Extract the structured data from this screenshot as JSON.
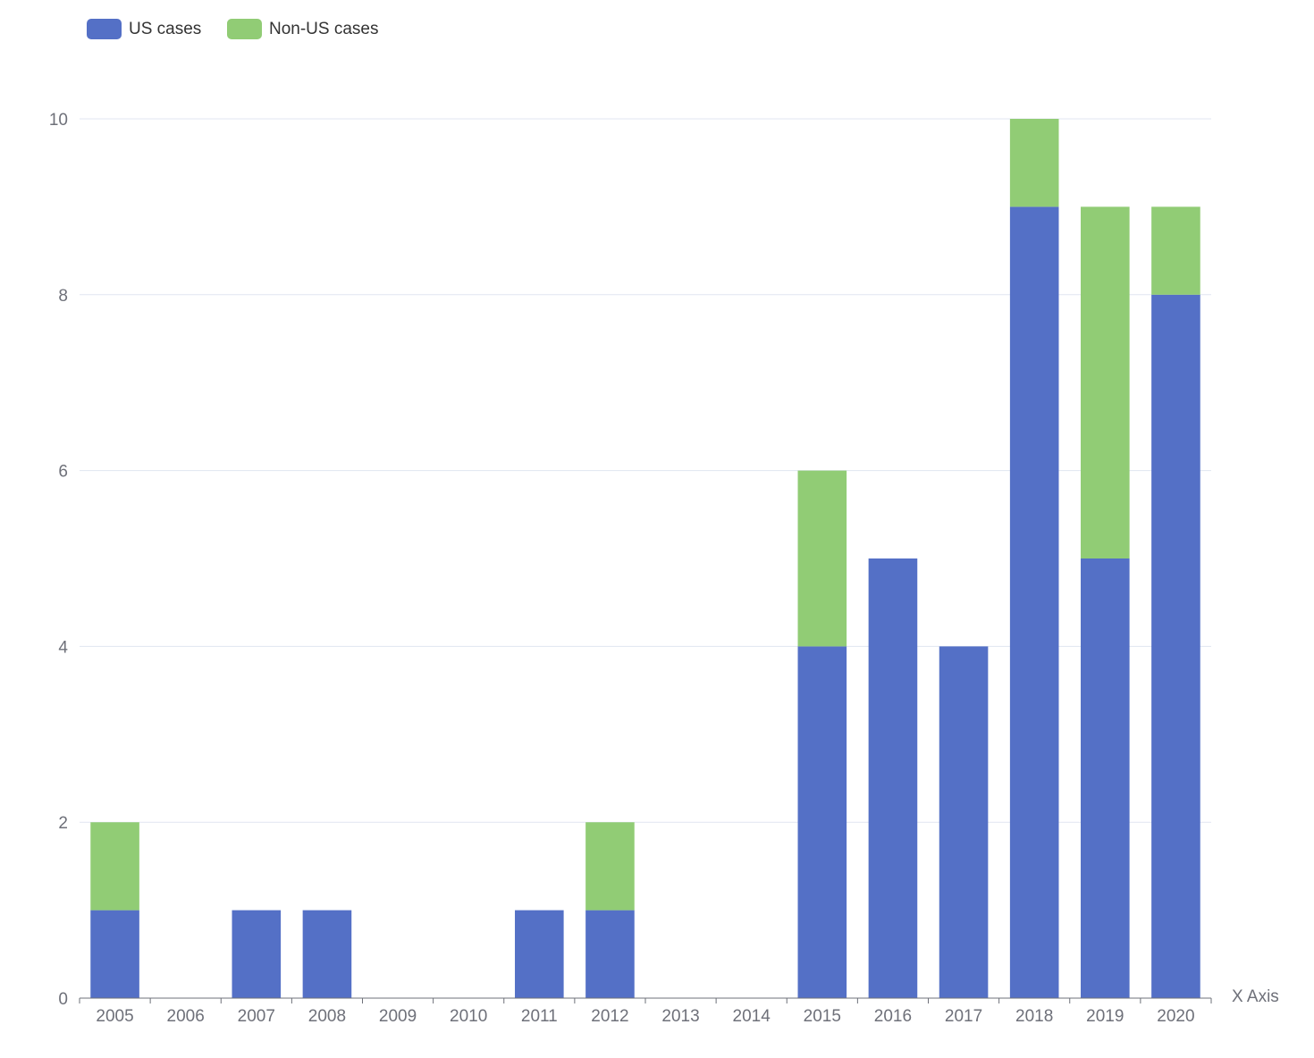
{
  "chart_data": {
    "type": "bar",
    "stacked": true,
    "categories": [
      "2005",
      "2006",
      "2007",
      "2008",
      "2009",
      "2010",
      "2011",
      "2012",
      "2013",
      "2014",
      "2015",
      "2016",
      "2017",
      "2018",
      "2019",
      "2020"
    ],
    "series": [
      {
        "name": "US cases",
        "color": "#5470c6",
        "values": [
          1,
          0,
          1,
          1,
          0,
          0,
          1,
          1,
          0,
          0,
          4,
          5,
          4,
          9,
          5,
          8
        ]
      },
      {
        "name": "Non-US cases",
        "color": "#91cc75",
        "values": [
          1,
          0,
          0,
          0,
          0,
          0,
          0,
          1,
          0,
          0,
          2,
          0,
          0,
          1,
          4,
          1
        ]
      }
    ],
    "title": "",
    "xlabel": "X Axis",
    "ylabel": "",
    "ylim": [
      0,
      10
    ],
    "yticks": [
      0,
      2,
      4,
      6,
      8,
      10
    ],
    "grid": true,
    "legend": "top-left"
  }
}
